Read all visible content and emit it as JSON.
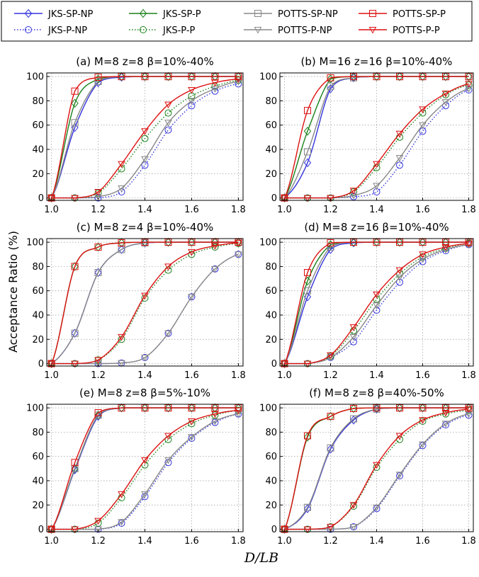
{
  "figure": {
    "ylabel": "Acceptance Ratio (%)",
    "xlabel": "D/LB"
  },
  "legend": [
    {
      "name": "JKS-SP-NP",
      "color": "#3333dd",
      "marker": "diamond",
      "dash": "solid"
    },
    {
      "name": "JKS-P-NP",
      "color": "#3333dd",
      "marker": "circle",
      "dash": "dotted"
    },
    {
      "name": "JKS-SP-P",
      "color": "#1a801a",
      "marker": "diamond",
      "dash": "solid"
    },
    {
      "name": "JKS-P-P",
      "color": "#1a801a",
      "marker": "circle",
      "dash": "dotted"
    },
    {
      "name": "POTTS-SP-NP",
      "color": "#888888",
      "marker": "square",
      "dash": "solid"
    },
    {
      "name": "POTTS-P-NP",
      "color": "#888888",
      "marker": "triangle",
      "dash": "solid"
    },
    {
      "name": "POTTS-SP-P",
      "color": "#dd1111",
      "marker": "square",
      "dash": "solid"
    },
    {
      "name": "POTTS-P-P",
      "color": "#dd1111",
      "marker": "triangle",
      "dash": "solid"
    }
  ],
  "chart_data": [
    {
      "type": "line",
      "title": "(a) M=8 z=8 β=10%-40%",
      "x": [
        1.0,
        1.1,
        1.2,
        1.3,
        1.4,
        1.5,
        1.6,
        1.7,
        1.8
      ],
      "xticks": [
        "1.0",
        "1.2",
        "1.4",
        "1.6",
        "1.8"
      ],
      "yticks": [
        "0",
        "20",
        "40",
        "60",
        "80",
        "100"
      ],
      "xlim": [
        0.98,
        1.82
      ],
      "ylim": [
        -2,
        103
      ],
      "grid": true,
      "series": [
        {
          "name": "JKS-SP-NP",
          "values": [
            0,
            58,
            95,
            99.5,
            100,
            100,
            100,
            100,
            100
          ]
        },
        {
          "name": "JKS-P-NP",
          "values": [
            0,
            0,
            0,
            5,
            27,
            56,
            76,
            88,
            94
          ]
        },
        {
          "name": "JKS-SP-P",
          "values": [
            0,
            78,
            98,
            100,
            100,
            100,
            100,
            100,
            100
          ]
        },
        {
          "name": "JKS-P-P",
          "values": [
            0,
            0,
            4,
            24,
            49,
            70,
            84,
            92,
            97
          ]
        },
        {
          "name": "POTTS-SP-NP",
          "values": [
            0,
            62,
            96,
            100,
            100,
            100,
            100,
            100,
            100
          ]
        },
        {
          "name": "POTTS-P-NP",
          "values": [
            0,
            0,
            1,
            8,
            32,
            62,
            80,
            90,
            96
          ]
        },
        {
          "name": "POTTS-SP-P",
          "values": [
            0,
            88,
            99.5,
            100,
            100,
            100,
            100,
            100,
            100
          ]
        },
        {
          "name": "POTTS-P-P",
          "values": [
            0,
            0,
            5,
            28,
            55,
            77,
            89,
            95,
            98
          ]
        }
      ]
    },
    {
      "type": "line",
      "title": "(b) M=16 z=16 β=10%-40%",
      "x": [
        1.0,
        1.1,
        1.2,
        1.3,
        1.4,
        1.5,
        1.6,
        1.7,
        1.8
      ],
      "xticks": [
        "1.0",
        "1.2",
        "1.4",
        "1.6",
        "1.8"
      ],
      "yticks": [
        "0",
        "20",
        "40",
        "60",
        "80",
        "100"
      ],
      "xlim": [
        0.98,
        1.82
      ],
      "ylim": [
        -2,
        103
      ],
      "grid": true,
      "series": [
        {
          "name": "JKS-SP-NP",
          "values": [
            0,
            29,
            90,
            99,
            100,
            100,
            100,
            100,
            100
          ]
        },
        {
          "name": "JKS-P-NP",
          "values": [
            0,
            0,
            0,
            1,
            5,
            27,
            55,
            76,
            89
          ]
        },
        {
          "name": "JKS-SP-P",
          "values": [
            0,
            55,
            98,
            100,
            100,
            100,
            100,
            100,
            100
          ]
        },
        {
          "name": "JKS-P-P",
          "values": [
            0,
            0,
            0,
            5,
            25,
            50,
            70,
            85,
            93
          ]
        },
        {
          "name": "POTTS-SP-NP",
          "values": [
            0,
            38,
            92,
            99,
            100,
            100,
            100,
            100,
            100
          ]
        },
        {
          "name": "POTTS-P-NP",
          "values": [
            0,
            0,
            0,
            2,
            10,
            33,
            60,
            79,
            90
          ]
        },
        {
          "name": "POTTS-SP-P",
          "values": [
            0,
            72,
            99,
            100,
            100,
            100,
            100,
            100,
            100
          ]
        },
        {
          "name": "POTTS-P-P",
          "values": [
            0,
            0,
            0,
            6,
            28,
            53,
            73,
            86,
            94
          ]
        }
      ]
    },
    {
      "type": "line",
      "title": "(c) M=8 z=4 β=10%-40%",
      "x": [
        1.0,
        1.1,
        1.2,
        1.3,
        1.4,
        1.5,
        1.6,
        1.7,
        1.8
      ],
      "xticks": [
        "1.0",
        "1.2",
        "1.4",
        "1.6",
        "1.8"
      ],
      "yticks": [
        "0",
        "20",
        "40",
        "60",
        "80",
        "100"
      ],
      "xlim": [
        0.98,
        1.82
      ],
      "ylim": [
        -2,
        103
      ],
      "grid": true,
      "series": [
        {
          "name": "JKS-SP-NP",
          "values": [
            0,
            25,
            75,
            94,
            99.5,
            100,
            100,
            100,
            100
          ]
        },
        {
          "name": "JKS-P-NP",
          "values": [
            0,
            0,
            0,
            0.5,
            5,
            25,
            55,
            78,
            90
          ]
        },
        {
          "name": "JKS-SP-P",
          "values": [
            0,
            80,
            96,
            99.5,
            100,
            100,
            100,
            100,
            100
          ]
        },
        {
          "name": "JKS-P-P",
          "values": [
            0,
            0,
            3,
            20,
            54,
            77,
            90,
            96,
            99
          ]
        },
        {
          "name": "POTTS-SP-NP",
          "values": [
            0,
            25,
            75,
            94,
            99.5,
            100,
            100,
            100,
            100
          ]
        },
        {
          "name": "POTTS-P-NP",
          "values": [
            0,
            0,
            0,
            0.5,
            5,
            25,
            55,
            78,
            90
          ]
        },
        {
          "name": "POTTS-SP-P",
          "values": [
            0,
            80,
            96,
            99.5,
            100,
            100,
            100,
            100,
            100
          ]
        },
        {
          "name": "POTTS-P-P",
          "values": [
            0,
            0,
            3,
            22,
            56,
            80,
            92,
            97,
            99.5
          ]
        }
      ]
    },
    {
      "type": "line",
      "title": "(d) M=8 z=16 β=10%-40%",
      "x": [
        1.0,
        1.1,
        1.2,
        1.3,
        1.4,
        1.5,
        1.6,
        1.7,
        1.8
      ],
      "xticks": [
        "1.0",
        "1.2",
        "1.4",
        "1.6",
        "1.8"
      ],
      "yticks": [
        "0",
        "20",
        "40",
        "60",
        "80",
        "100"
      ],
      "xlim": [
        0.98,
        1.82
      ],
      "ylim": [
        -2,
        103
      ],
      "grid": true,
      "series": [
        {
          "name": "JKS-SP-NP",
          "values": [
            0,
            55,
            94,
            99.5,
            100,
            100,
            100,
            100,
            100
          ]
        },
        {
          "name": "JKS-P-NP",
          "values": [
            0,
            0,
            5,
            18,
            44,
            67,
            84,
            93,
            98
          ]
        },
        {
          "name": "JKS-SP-P",
          "values": [
            0,
            68,
            98,
            100,
            100,
            100,
            100,
            100,
            100
          ]
        },
        {
          "name": "JKS-P-P",
          "values": [
            0,
            0,
            6,
            27,
            53,
            74,
            88,
            95,
            99
          ]
        },
        {
          "name": "POTTS-SP-NP",
          "values": [
            0,
            60,
            96,
            100,
            100,
            100,
            100,
            100,
            100
          ]
        },
        {
          "name": "POTTS-P-NP",
          "values": [
            0,
            0,
            5,
            22,
            48,
            71,
            86,
            94,
            98
          ]
        },
        {
          "name": "POTTS-SP-P",
          "values": [
            0,
            75,
            99.5,
            100,
            100,
            100,
            100,
            100,
            100
          ]
        },
        {
          "name": "POTTS-P-P",
          "values": [
            0,
            0,
            7,
            30,
            57,
            77,
            90,
            96,
            99
          ]
        }
      ]
    },
    {
      "type": "line",
      "title": "(e) M=8 z=8 β=5%-10%",
      "x": [
        1.0,
        1.1,
        1.2,
        1.3,
        1.4,
        1.5,
        1.6,
        1.7,
        1.8
      ],
      "xticks": [
        "1.0",
        "1.2",
        "1.4",
        "1.6",
        "1.8"
      ],
      "yticks": [
        "0",
        "20",
        "40",
        "60",
        "80",
        "100"
      ],
      "xlim": [
        0.98,
        1.82
      ],
      "ylim": [
        -2,
        103
      ],
      "grid": true,
      "series": [
        {
          "name": "JKS-SP-NP",
          "values": [
            0,
            49,
            93,
            100,
            100,
            100,
            100,
            100,
            100
          ]
        },
        {
          "name": "JKS-P-NP",
          "values": [
            0,
            0,
            0,
            5,
            27,
            55,
            75,
            88,
            95
          ]
        },
        {
          "name": "JKS-SP-P",
          "values": [
            0,
            50,
            94,
            100,
            100,
            100,
            100,
            100,
            100
          ]
        },
        {
          "name": "JKS-P-P",
          "values": [
            0,
            0,
            5,
            26,
            53,
            74,
            87,
            94,
            98
          ]
        },
        {
          "name": "POTTS-SP-NP",
          "values": [
            0,
            50,
            94,
            100,
            100,
            100,
            100,
            100,
            100
          ]
        },
        {
          "name": "POTTS-P-NP",
          "values": [
            0,
            0,
            0,
            6,
            29,
            57,
            76,
            89,
            95
          ]
        },
        {
          "name": "POTTS-SP-P",
          "values": [
            0,
            55,
            96,
            100,
            100,
            100,
            100,
            100,
            100
          ]
        },
        {
          "name": "POTTS-P-P",
          "values": [
            0,
            0,
            7,
            29,
            57,
            77,
            89,
            95,
            98
          ]
        }
      ]
    },
    {
      "type": "line",
      "title": "(f) M=8 z=8 β=40%-50%",
      "x": [
        1.0,
        1.1,
        1.2,
        1.3,
        1.4,
        1.5,
        1.6,
        1.7,
        1.8
      ],
      "xticks": [
        "1.0",
        "1.2",
        "1.4",
        "1.6",
        "1.8"
      ],
      "yticks": [
        "0",
        "20",
        "40",
        "60",
        "80",
        "100"
      ],
      "xlim": [
        0.98,
        1.82
      ],
      "ylim": [
        -2,
        103
      ],
      "grid": true,
      "series": [
        {
          "name": "JKS-SP-NP",
          "values": [
            0,
            17,
            66,
            90,
            99,
            100,
            100,
            100,
            100
          ]
        },
        {
          "name": "JKS-P-NP",
          "values": [
            0,
            0,
            0,
            2,
            17,
            44,
            69,
            86,
            94
          ]
        },
        {
          "name": "JKS-SP-P",
          "values": [
            0,
            76,
            93,
            99.5,
            100,
            100,
            100,
            100,
            100
          ]
        },
        {
          "name": "JKS-P-P",
          "values": [
            0,
            0,
            2,
            19,
            51,
            74,
            89,
            95,
            98
          ]
        },
        {
          "name": "POTTS-SP-NP",
          "values": [
            0,
            18,
            67,
            91,
            99,
            100,
            100,
            100,
            100
          ]
        },
        {
          "name": "POTTS-P-NP",
          "values": [
            0,
            0,
            0,
            2,
            18,
            45,
            70,
            87,
            95
          ]
        },
        {
          "name": "POTTS-SP-P",
          "values": [
            0,
            77,
            93,
            99.5,
            100,
            100,
            100,
            100,
            100
          ]
        },
        {
          "name": "POTTS-P-P",
          "values": [
            0,
            0,
            2,
            20,
            53,
            77,
            90,
            96,
            99
          ]
        }
      ]
    }
  ]
}
